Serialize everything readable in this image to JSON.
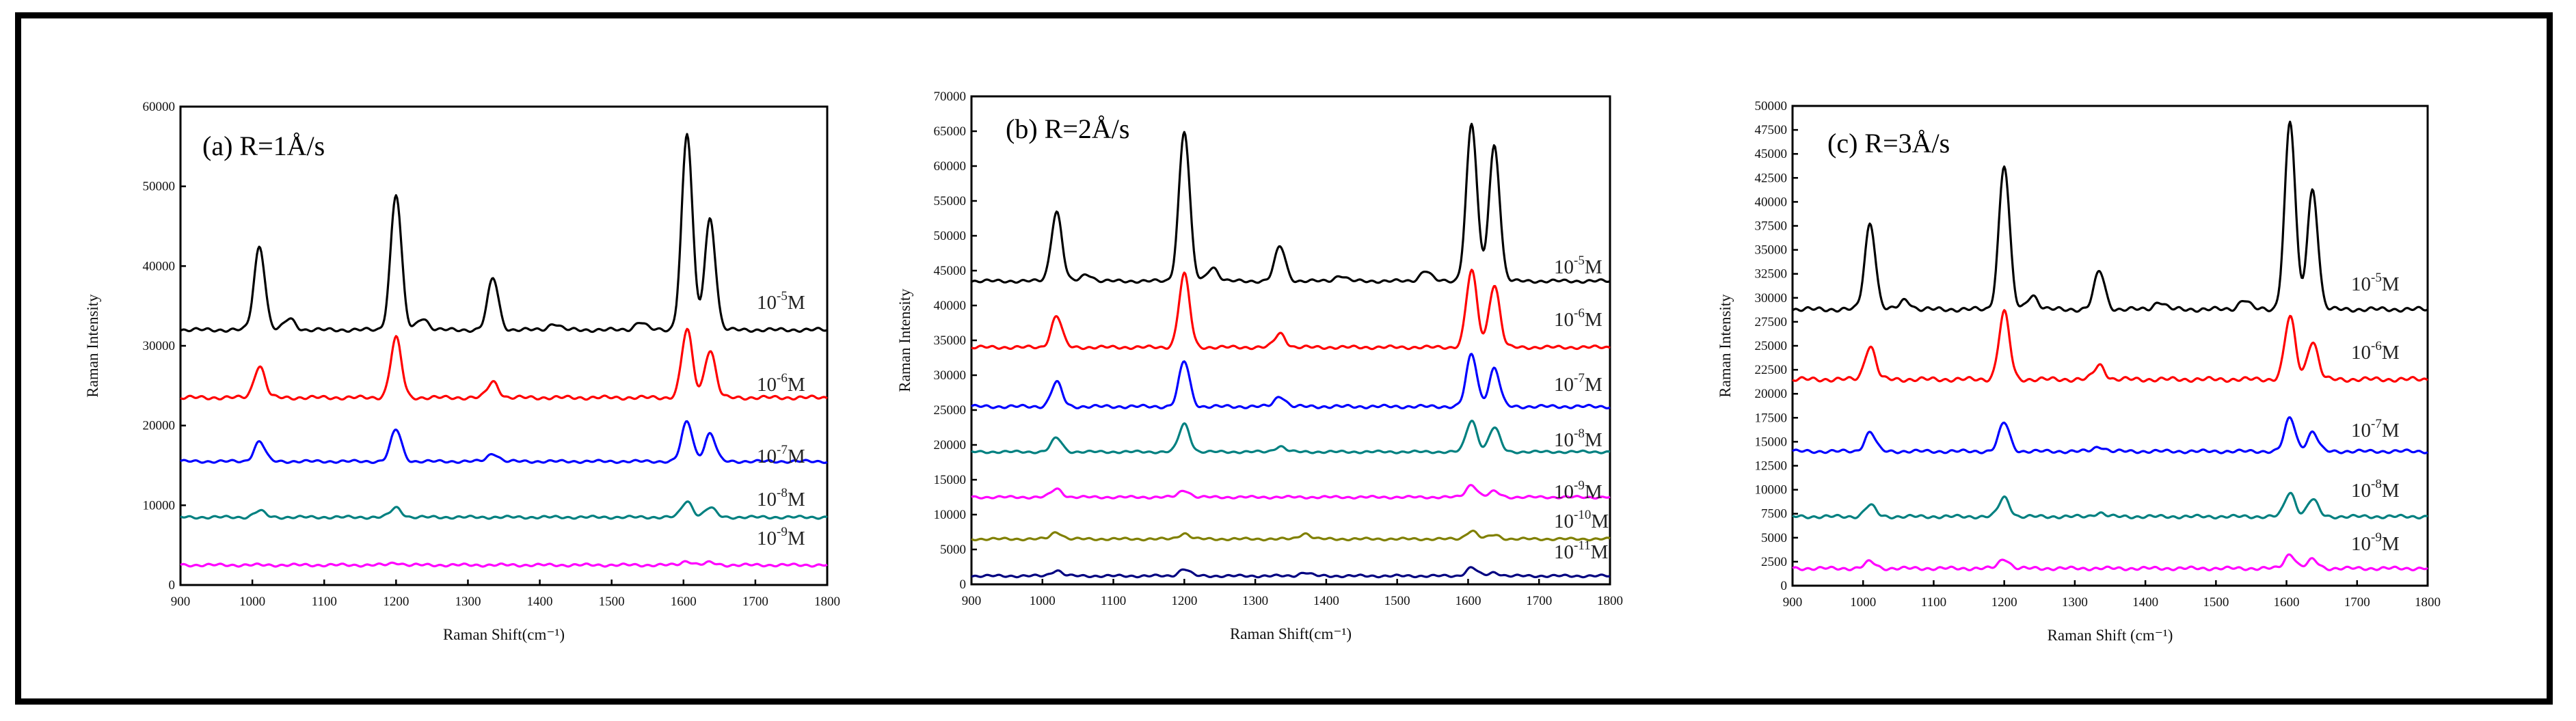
{
  "chart_data": [
    {
      "type": "line",
      "title": "(a) R=1Å/s",
      "xlabel": "Raman Shift(cm⁻¹)",
      "ylabel": "Raman Intensity",
      "xlim": [
        900,
        1800
      ],
      "ylim": [
        0,
        60000
      ],
      "x_ticks": [
        900,
        1000,
        1100,
        1200,
        1300,
        1400,
        1500,
        1600,
        1700,
        1800
      ],
      "y_ticks": [
        0,
        10000,
        20000,
        30000,
        40000,
        50000,
        60000
      ],
      "series": [
        {
          "name": "10-5M",
          "mantissa": "10",
          "exponent": "-5",
          "unit": "M",
          "color": "#000000",
          "baseline": 32000,
          "peaks": [
            [
              1010,
              10500
            ],
            [
              1052,
              1400
            ],
            [
              1200,
              17000
            ],
            [
              1237,
              1500
            ],
            [
              1335,
              6500
            ],
            [
              1420,
              800
            ],
            [
              1540,
              1000
            ],
            [
              1605,
              24500
            ],
            [
              1637,
              14000
            ]
          ]
        },
        {
          "name": "10-6M",
          "mantissa": "10",
          "exponent": "-6",
          "unit": "M",
          "color": "#ff0000",
          "baseline": 23500,
          "peaks": [
            [
              1010,
              4000
            ],
            [
              1200,
              7500
            ],
            [
              1335,
              2000
            ],
            [
              1605,
              8500
            ],
            [
              1637,
              6000
            ]
          ]
        },
        {
          "name": "10-7M",
          "mantissa": "10",
          "exponent": "-7",
          "unit": "M",
          "color": "#0000ff",
          "baseline": 15500,
          "peaks": [
            [
              1010,
              2500
            ],
            [
              1200,
              4000
            ],
            [
              1335,
              1000
            ],
            [
              1605,
              5000
            ],
            [
              1637,
              3500
            ]
          ]
        },
        {
          "name": "10-8M",
          "mantissa": "10",
          "exponent": "-8",
          "unit": "M",
          "color": "#008080",
          "baseline": 8500,
          "peaks": [
            [
              1010,
              800
            ],
            [
              1200,
              1200
            ],
            [
              1605,
              2000
            ],
            [
              1637,
              1200
            ]
          ]
        },
        {
          "name": "10-9M",
          "mantissa": "10",
          "exponent": "-9",
          "unit": "M",
          "color": "#ff00ff",
          "baseline": 2500,
          "peaks": [
            [
              1200,
              300
            ],
            [
              1605,
              500
            ],
            [
              1637,
              300
            ]
          ]
        }
      ]
    },
    {
      "type": "line",
      "title": "(b) R=2Å/s",
      "xlabel": "Raman Shift(cm⁻¹)",
      "ylabel": "Raman Intensity",
      "xlim": [
        900,
        1800
      ],
      "ylim": [
        0,
        70000
      ],
      "x_ticks": [
        900,
        1000,
        1100,
        1200,
        1300,
        1400,
        1500,
        1600,
        1700,
        1800
      ],
      "y_ticks": [
        0,
        5000,
        10000,
        15000,
        20000,
        25000,
        30000,
        35000,
        40000,
        45000,
        50000,
        55000,
        60000,
        65000,
        70000
      ],
      "series": [
        {
          "name": "10-5M",
          "mantissa": "10",
          "exponent": "-5",
          "unit": "M",
          "color": "#000000",
          "baseline": 43500,
          "peaks": [
            [
              1020,
              10000
            ],
            [
              1063,
              1000
            ],
            [
              1200,
              21500
            ],
            [
              1240,
              2000
            ],
            [
              1335,
              5000
            ],
            [
              1420,
              800
            ],
            [
              1540,
              1500
            ],
            [
              1605,
              22500
            ],
            [
              1637,
              19500
            ]
          ]
        },
        {
          "name": "10-6M",
          "mantissa": "10",
          "exponent": "-6",
          "unit": "M",
          "color": "#ff0000",
          "baseline": 34000,
          "peaks": [
            [
              1020,
              4500
            ],
            [
              1200,
              10500
            ],
            [
              1335,
              2000
            ],
            [
              1605,
              11000
            ],
            [
              1637,
              9000
            ]
          ]
        },
        {
          "name": "10-7M",
          "mantissa": "10",
          "exponent": "-7",
          "unit": "M",
          "color": "#0000ff",
          "baseline": 25500,
          "peaks": [
            [
              1020,
              3500
            ],
            [
              1200,
              6500
            ],
            [
              1335,
              1500
            ],
            [
              1605,
              7500
            ],
            [
              1637,
              5500
            ]
          ]
        },
        {
          "name": "10-8M",
          "mantissa": "10",
          "exponent": "-8",
          "unit": "M",
          "color": "#008080",
          "baseline": 19000,
          "peaks": [
            [
              1020,
              2000
            ],
            [
              1200,
              4000
            ],
            [
              1335,
              800
            ],
            [
              1605,
              4500
            ],
            [
              1637,
              3500
            ]
          ]
        },
        {
          "name": "10-9M",
          "mantissa": "10",
          "exponent": "-9",
          "unit": "M",
          "color": "#ff00ff",
          "baseline": 12500,
          "peaks": [
            [
              1020,
              1200
            ],
            [
              1200,
              1000
            ],
            [
              1605,
              1800
            ],
            [
              1637,
              800
            ]
          ]
        },
        {
          "name": "10-10M",
          "mantissa": "10",
          "exponent": "-10",
          "unit": "M",
          "color": "#808000",
          "baseline": 6500,
          "peaks": [
            [
              1020,
              1000
            ],
            [
              1200,
              800
            ],
            [
              1370,
              800
            ],
            [
              1605,
              1200
            ],
            [
              1637,
              600
            ]
          ]
        },
        {
          "name": "10-11M",
          "mantissa": "10",
          "exponent": "-11",
          "unit": "M",
          "color": "#000080",
          "baseline": 1200,
          "peaks": [
            [
              1020,
              800
            ],
            [
              1200,
              1000
            ],
            [
              1370,
              500
            ],
            [
              1605,
              1200
            ],
            [
              1637,
              500
            ]
          ]
        }
      ]
    },
    {
      "type": "line",
      "title": "(c) R=3Å/s",
      "xlabel": "Raman Shift  (cm⁻¹)",
      "ylabel": "Raman Intensity",
      "xlim": [
        900,
        1800
      ],
      "ylim": [
        0,
        50000
      ],
      "x_ticks": [
        900,
        1000,
        1100,
        1200,
        1300,
        1400,
        1500,
        1600,
        1700,
        1800
      ],
      "y_ticks": [
        0,
        2500,
        5000,
        7500,
        10000,
        12500,
        15000,
        17500,
        20000,
        22500,
        25000,
        27500,
        30000,
        32500,
        35000,
        37500,
        40000,
        42500,
        45000,
        47500,
        50000
      ],
      "series": [
        {
          "name": "10-5M",
          "mantissa": "10",
          "exponent": "-5",
          "unit": "M",
          "color": "#000000",
          "baseline": 28800,
          "peaks": [
            [
              1010,
              9000
            ],
            [
              1060,
              1000
            ],
            [
              1200,
              15000
            ],
            [
              1240,
              1500
            ],
            [
              1335,
              4000
            ],
            [
              1420,
              800
            ],
            [
              1540,
              1000
            ],
            [
              1605,
              19500
            ],
            [
              1637,
              12500
            ]
          ]
        },
        {
          "name": "10-6M",
          "mantissa": "10",
          "exponent": "-6",
          "unit": "M",
          "color": "#ff0000",
          "baseline": 21500,
          "peaks": [
            [
              1010,
              3500
            ],
            [
              1200,
              7000
            ],
            [
              1335,
              1500
            ],
            [
              1605,
              6500
            ],
            [
              1637,
              4000
            ]
          ]
        },
        {
          "name": "10-7M",
          "mantissa": "10",
          "exponent": "-7",
          "unit": "M",
          "color": "#0000ff",
          "baseline": 14000,
          "peaks": [
            [
              1010,
              2000
            ],
            [
              1200,
              3000
            ],
            [
              1335,
              500
            ],
            [
              1605,
              3500
            ],
            [
              1637,
              2000
            ]
          ]
        },
        {
          "name": "10-8M",
          "mantissa": "10",
          "exponent": "-8",
          "unit": "M",
          "color": "#008080",
          "baseline": 7200,
          "peaks": [
            [
              1010,
              1200
            ],
            [
              1200,
              2000
            ],
            [
              1335,
              400
            ],
            [
              1605,
              2500
            ],
            [
              1637,
              1800
            ]
          ]
        },
        {
          "name": "10-9M",
          "mantissa": "10",
          "exponent": "-9",
          "unit": "M",
          "color": "#ff00ff",
          "baseline": 1800,
          "peaks": [
            [
              1010,
              700
            ],
            [
              1200,
              1000
            ],
            [
              1605,
              1500
            ],
            [
              1637,
              900
            ]
          ]
        }
      ]
    }
  ]
}
